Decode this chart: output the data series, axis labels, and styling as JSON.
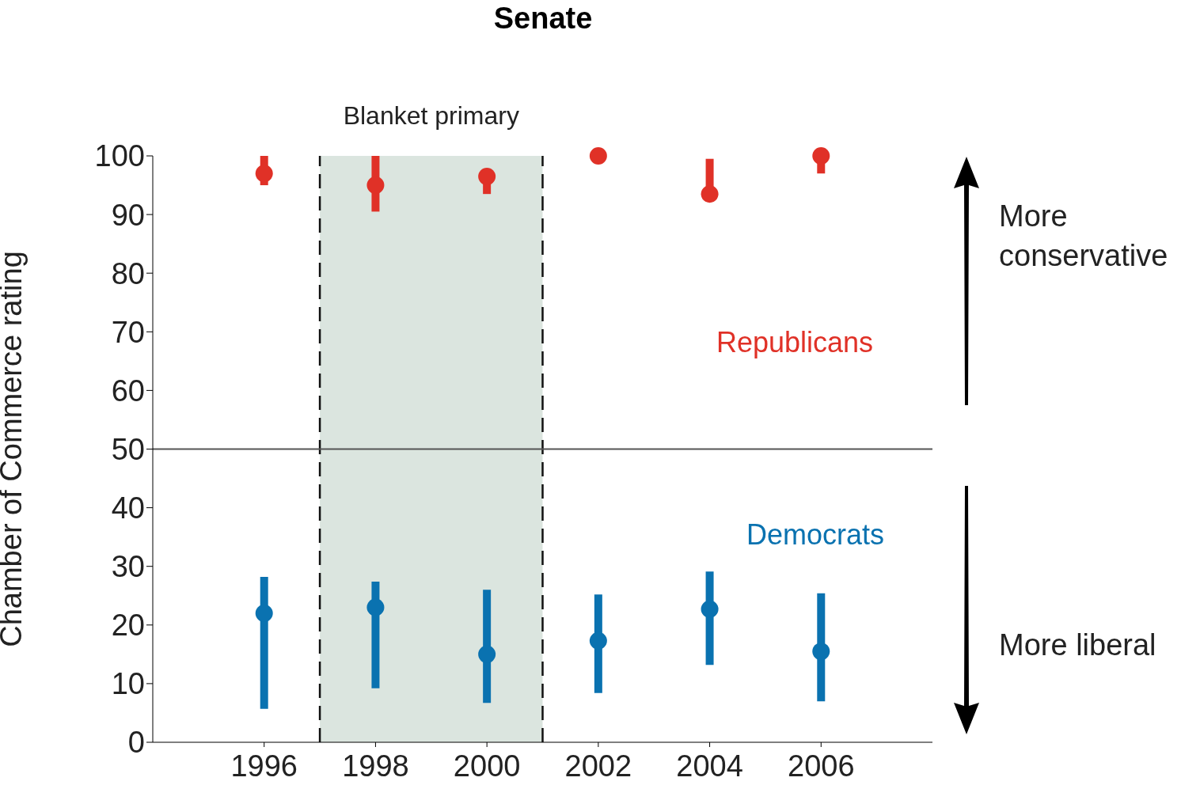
{
  "chart_data": {
    "type": "scatter",
    "title": "Senate",
    "ylabel": "Chamber of Commerce rating",
    "x": [
      1996,
      1998,
      2000,
      2002,
      2004,
      2006
    ],
    "series": [
      {
        "name": "Republicans",
        "color": "#e03127",
        "values": [
          97,
          95,
          96.5,
          100,
          93.5,
          100
        ],
        "errors": [
          [
            95,
            100
          ],
          [
            90.5,
            100
          ],
          [
            93.5,
            97.5
          ],
          null,
          [
            92.5,
            99.5
          ],
          [
            97,
            100
          ]
        ]
      },
      {
        "name": "Democrats",
        "color": "#0a72b0",
        "values": [
          22,
          23,
          15,
          17.3,
          22.7,
          15.5
        ],
        "errors": [
          [
            5.7,
            28.2
          ],
          [
            9.2,
            27.4
          ],
          [
            6.7,
            26
          ],
          [
            8.4,
            25.2
          ],
          [
            13.2,
            29.1
          ],
          [
            7,
            25.4
          ]
        ]
      }
    ],
    "xlim": [
      1994,
      2008
    ],
    "xticks": [
      1996,
      1998,
      2000,
      2002,
      2004,
      2006
    ],
    "ylim": [
      0,
      100
    ],
    "yticks": [
      0,
      10,
      20,
      30,
      40,
      50,
      60,
      70,
      80,
      90,
      100
    ],
    "bands": [
      {
        "axis": "x",
        "from": 1997,
        "to": 2001,
        "label": "Blanket primary",
        "color": "#dbe5df"
      }
    ],
    "ref_lines": [
      {
        "axis": "x",
        "value": 1997,
        "line_style": "dashed",
        "color": "#111111"
      },
      {
        "axis": "x",
        "value": 2001,
        "line_style": "dashed",
        "color": "#111111"
      },
      {
        "axis": "y",
        "value": 50,
        "line_style": "solid",
        "color": "#555555"
      }
    ],
    "annotations": [
      "More conservative",
      "More liberal"
    ],
    "marker": "circle",
    "grid": false,
    "legend": false
  }
}
